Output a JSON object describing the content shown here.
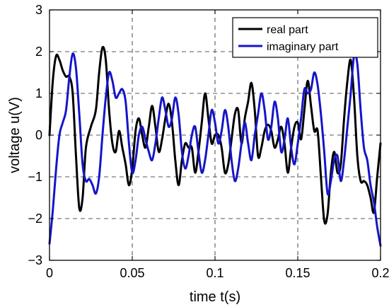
{
  "chart_data": {
    "type": "line",
    "xlabel": "time t(s)",
    "ylabel": "voltage u(V)",
    "xlim": [
      0,
      0.2
    ],
    "ylim": [
      -3,
      3
    ],
    "x_ticks": [
      0,
      0.05,
      0.1,
      0.15,
      0.2
    ],
    "x_tick_labels": [
      "0",
      "0.05",
      "0.1",
      "0.15",
      "0.2"
    ],
    "y_ticks": [
      -3,
      -2,
      -1,
      0,
      1,
      2,
      3
    ],
    "y_tick_labels": [
      "−3",
      "−2",
      "−1",
      "0",
      "1",
      "2",
      "3"
    ],
    "grid": true,
    "legend_position": "top-right",
    "series": [
      {
        "name": "real part",
        "color": "#000000",
        "points": [
          [
            0.0,
            0.0
          ],
          [
            0.002,
            1.3
          ],
          [
            0.004,
            1.9
          ],
          [
            0.006,
            1.8
          ],
          [
            0.008,
            1.55
          ],
          [
            0.01,
            1.4
          ],
          [
            0.012,
            1.4
          ],
          [
            0.014,
            1.0
          ],
          [
            0.016,
            -0.5
          ],
          [
            0.018,
            -1.75
          ],
          [
            0.02,
            -1.5
          ],
          [
            0.022,
            -0.3
          ],
          [
            0.025,
            0.2
          ],
          [
            0.028,
            0.6
          ],
          [
            0.03,
            1.5
          ],
          [
            0.032,
            2.1
          ],
          [
            0.034,
            1.8
          ],
          [
            0.036,
            0.6
          ],
          [
            0.038,
            -0.2
          ],
          [
            0.04,
            -0.4
          ],
          [
            0.042,
            0.1
          ],
          [
            0.044,
            -0.3
          ],
          [
            0.046,
            -0.7
          ],
          [
            0.048,
            -1.2
          ],
          [
            0.05,
            -0.8
          ],
          [
            0.052,
            0.1
          ],
          [
            0.054,
            0.4
          ],
          [
            0.056,
            0.0
          ],
          [
            0.058,
            -0.3
          ],
          [
            0.06,
            0.2
          ],
          [
            0.062,
            0.7
          ],
          [
            0.064,
            0.2
          ],
          [
            0.066,
            -0.4
          ],
          [
            0.068,
            -0.1
          ],
          [
            0.07,
            0.4
          ],
          [
            0.072,
            0.75
          ],
          [
            0.074,
            0.3
          ],
          [
            0.076,
            -0.6
          ],
          [
            0.078,
            -1.2
          ],
          [
            0.08,
            -0.6
          ],
          [
            0.082,
            -0.2
          ],
          [
            0.084,
            -0.3
          ],
          [
            0.086,
            -0.3
          ],
          [
            0.088,
            -0.9
          ],
          [
            0.09,
            -0.4
          ],
          [
            0.092,
            0.3
          ],
          [
            0.094,
            1.0
          ],
          [
            0.096,
            0.4
          ],
          [
            0.098,
            -0.2
          ],
          [
            0.1,
            0.0
          ],
          [
            0.102,
            0.0
          ],
          [
            0.104,
            -0.3
          ],
          [
            0.106,
            -0.9
          ],
          [
            0.108,
            -0.7
          ],
          [
            0.11,
            -0.1
          ],
          [
            0.112,
            0.5
          ],
          [
            0.114,
            0.6
          ],
          [
            0.116,
            -0.2
          ],
          [
            0.118,
            0.4
          ],
          [
            0.12,
            0.8
          ],
          [
            0.122,
            1.25
          ],
          [
            0.124,
            0.6
          ],
          [
            0.126,
            -0.5
          ],
          [
            0.128,
            -0.3
          ],
          [
            0.13,
            0.1
          ],
          [
            0.132,
            0.25
          ],
          [
            0.134,
            0.1
          ],
          [
            0.136,
            -0.3
          ],
          [
            0.138,
            -0.1
          ],
          [
            0.14,
            0.2
          ],
          [
            0.142,
            -0.2
          ],
          [
            0.144,
            -0.9
          ],
          [
            0.146,
            -0.3
          ],
          [
            0.148,
            0.2
          ],
          [
            0.15,
            0.3
          ],
          [
            0.152,
            -0.1
          ],
          [
            0.154,
            0.6
          ],
          [
            0.156,
            1.3
          ],
          [
            0.158,
            0.7
          ],
          [
            0.16,
            0.1
          ],
          [
            0.162,
            0.1
          ],
          [
            0.164,
            -1.0
          ],
          [
            0.166,
            -2.05
          ],
          [
            0.168,
            -1.9
          ],
          [
            0.17,
            -0.9
          ],
          [
            0.172,
            -0.4
          ],
          [
            0.174,
            -0.9
          ],
          [
            0.176,
            -0.7
          ],
          [
            0.178,
            0.4
          ],
          [
            0.18,
            1.3
          ],
          [
            0.182,
            1.8
          ],
          [
            0.184,
            0.9
          ],
          [
            0.186,
            -0.5
          ],
          [
            0.188,
            -1.1
          ],
          [
            0.19,
            -1.1
          ],
          [
            0.192,
            -1.2
          ],
          [
            0.194,
            -1.5
          ],
          [
            0.196,
            -1.85
          ],
          [
            0.198,
            -1.0
          ],
          [
            0.2,
            -0.2
          ]
        ]
      },
      {
        "name": "imaginary part",
        "color": "#1515c8",
        "points": [
          [
            0.0,
            -2.6
          ],
          [
            0.002,
            -1.8
          ],
          [
            0.004,
            -0.8
          ],
          [
            0.006,
            0.0
          ],
          [
            0.008,
            0.3
          ],
          [
            0.01,
            0.6
          ],
          [
            0.012,
            1.4
          ],
          [
            0.014,
            1.95
          ],
          [
            0.016,
            1.6
          ],
          [
            0.018,
            0.5
          ],
          [
            0.02,
            -0.7
          ],
          [
            0.022,
            -1.1
          ],
          [
            0.024,
            -1.05
          ],
          [
            0.026,
            -1.2
          ],
          [
            0.028,
            -1.4
          ],
          [
            0.03,
            -1.0
          ],
          [
            0.032,
            0.0
          ],
          [
            0.034,
            0.9
          ],
          [
            0.036,
            1.5
          ],
          [
            0.038,
            1.3
          ],
          [
            0.04,
            0.9
          ],
          [
            0.042,
            1.0
          ],
          [
            0.044,
            1.1
          ],
          [
            0.046,
            0.8
          ],
          [
            0.048,
            -0.2
          ],
          [
            0.05,
            -0.9
          ],
          [
            0.052,
            -0.6
          ],
          [
            0.054,
            0.0
          ],
          [
            0.056,
            0.2
          ],
          [
            0.058,
            -0.1
          ],
          [
            0.06,
            -0.4
          ],
          [
            0.062,
            -0.6
          ],
          [
            0.064,
            -0.2
          ],
          [
            0.066,
            0.4
          ],
          [
            0.068,
            0.9
          ],
          [
            0.07,
            0.6
          ],
          [
            0.072,
            0.2
          ],
          [
            0.074,
            0.4
          ],
          [
            0.076,
            0.9
          ],
          [
            0.078,
            0.5
          ],
          [
            0.08,
            -0.4
          ],
          [
            0.082,
            -0.8
          ],
          [
            0.084,
            -0.5
          ],
          [
            0.086,
            0.0
          ],
          [
            0.088,
            0.2
          ],
          [
            0.09,
            -0.4
          ],
          [
            0.092,
            -0.9
          ],
          [
            0.094,
            -0.6
          ],
          [
            0.096,
            0.0
          ],
          [
            0.098,
            0.6
          ],
          [
            0.1,
            0.3
          ],
          [
            0.102,
            -0.2
          ],
          [
            0.104,
            0.1
          ],
          [
            0.106,
            0.6
          ],
          [
            0.108,
            0.2
          ],
          [
            0.11,
            -0.6
          ],
          [
            0.112,
            -1.1
          ],
          [
            0.114,
            -0.8
          ],
          [
            0.116,
            -0.2
          ],
          [
            0.118,
            0.3
          ],
          [
            0.12,
            -0.2
          ],
          [
            0.122,
            -0.6
          ],
          [
            0.124,
            0.0
          ],
          [
            0.126,
            0.5
          ],
          [
            0.128,
            1.0
          ],
          [
            0.13,
            0.6
          ],
          [
            0.132,
            -0.1
          ],
          [
            0.134,
            0.2
          ],
          [
            0.136,
            0.8
          ],
          [
            0.138,
            0.4
          ],
          [
            0.14,
            -0.4
          ],
          [
            0.142,
            -0.1
          ],
          [
            0.144,
            0.4
          ],
          [
            0.146,
            -0.3
          ],
          [
            0.148,
            -0.7
          ],
          [
            0.15,
            -0.2
          ],
          [
            0.152,
            0.4
          ],
          [
            0.154,
            1.1
          ],
          [
            0.156,
            1.0
          ],
          [
            0.158,
            1.1
          ],
          [
            0.16,
            1.5
          ],
          [
            0.162,
            1.2
          ],
          [
            0.164,
            0.5
          ],
          [
            0.166,
            -0.4
          ],
          [
            0.168,
            -1.4
          ],
          [
            0.17,
            -1.1
          ],
          [
            0.172,
            -0.6
          ],
          [
            0.174,
            -0.5
          ],
          [
            0.176,
            -1.1
          ],
          [
            0.178,
            -0.6
          ],
          [
            0.18,
            0.2
          ],
          [
            0.182,
            1.0
          ],
          [
            0.184,
            1.9
          ],
          [
            0.186,
            1.7
          ],
          [
            0.188,
            0.6
          ],
          [
            0.19,
            -0.3
          ],
          [
            0.192,
            -0.6
          ],
          [
            0.194,
            -1.2
          ],
          [
            0.196,
            -1.6
          ],
          [
            0.198,
            -2.2
          ],
          [
            0.2,
            -2.65
          ]
        ]
      }
    ]
  }
}
